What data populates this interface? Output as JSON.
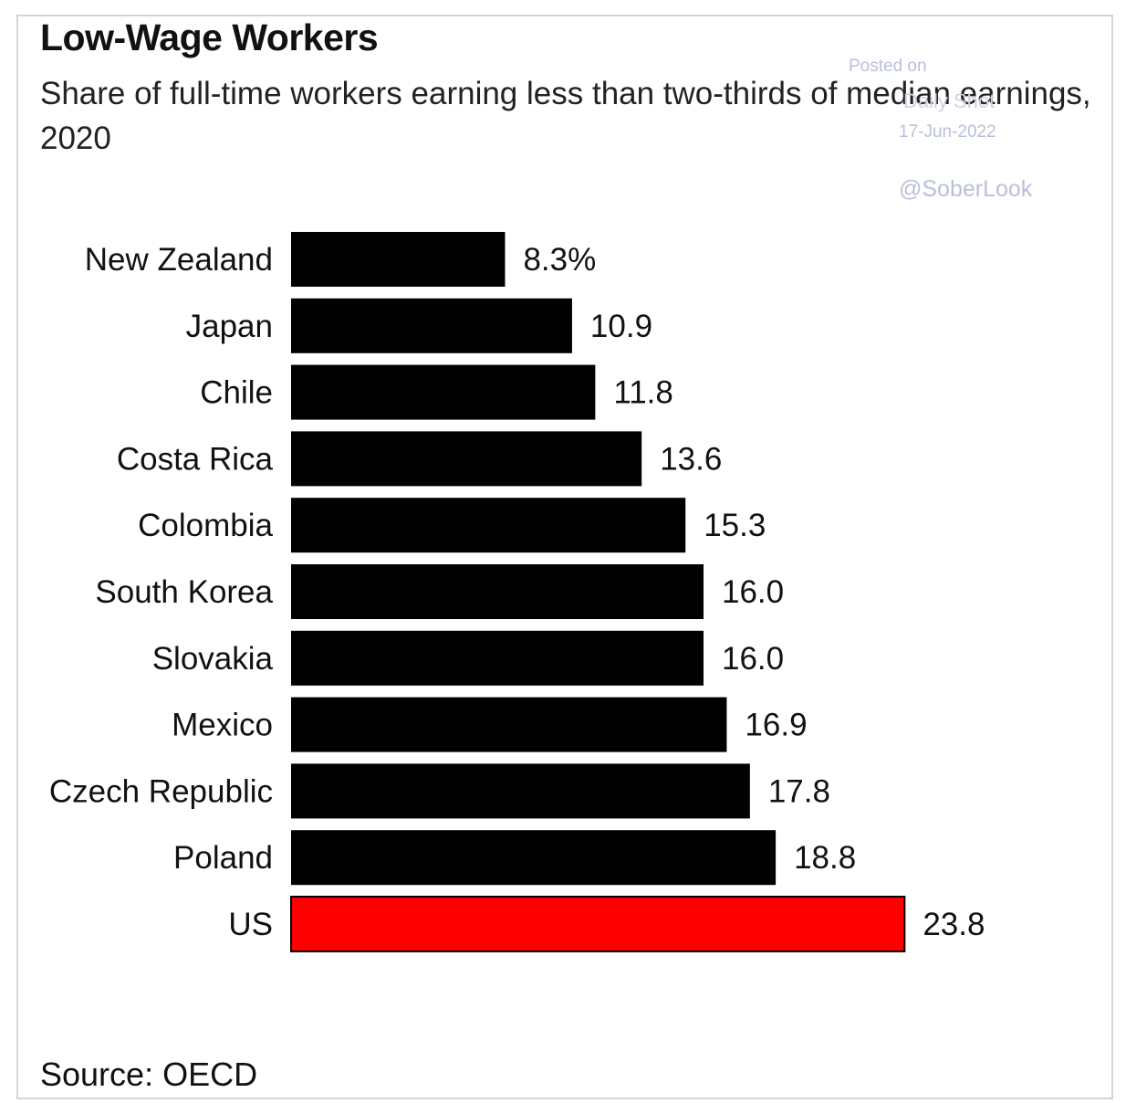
{
  "header": {
    "title": "Low-Wage Workers",
    "subtitle": "Share of full-time workers earning less than two-thirds of median earnings, 2020"
  },
  "watermark": {
    "posted": "Posted on",
    "blog": "Daily Shot",
    "date": "17-Jun-2022",
    "handle": "@SoberLook"
  },
  "footer": {
    "source": "Source: OECD"
  },
  "colors": {
    "bar": "#000000",
    "highlight": "#ff0000"
  },
  "chart_data": {
    "type": "bar",
    "orientation": "horizontal",
    "title": "Low-Wage Workers",
    "subtitle": "Share of full-time workers earning less than two-thirds of median earnings, 2020",
    "categories": [
      "New Zealand",
      "Japan",
      "Chile",
      "Costa Rica",
      "Colombia",
      "South Korea",
      "Slovakia",
      "Mexico",
      "Czech Republic",
      "Poland",
      "US"
    ],
    "values": [
      8.3,
      10.9,
      11.8,
      13.6,
      15.3,
      16.0,
      16.0,
      16.9,
      17.8,
      18.8,
      23.8
    ],
    "value_labels": [
      "8.3%",
      "10.9",
      "11.8",
      "13.6",
      "15.3",
      "16.0",
      "16.0",
      "16.9",
      "17.8",
      "18.8",
      "23.8"
    ],
    "highlight": "US",
    "xlim": [
      0,
      25
    ],
    "grid": false,
    "legend": "none"
  }
}
